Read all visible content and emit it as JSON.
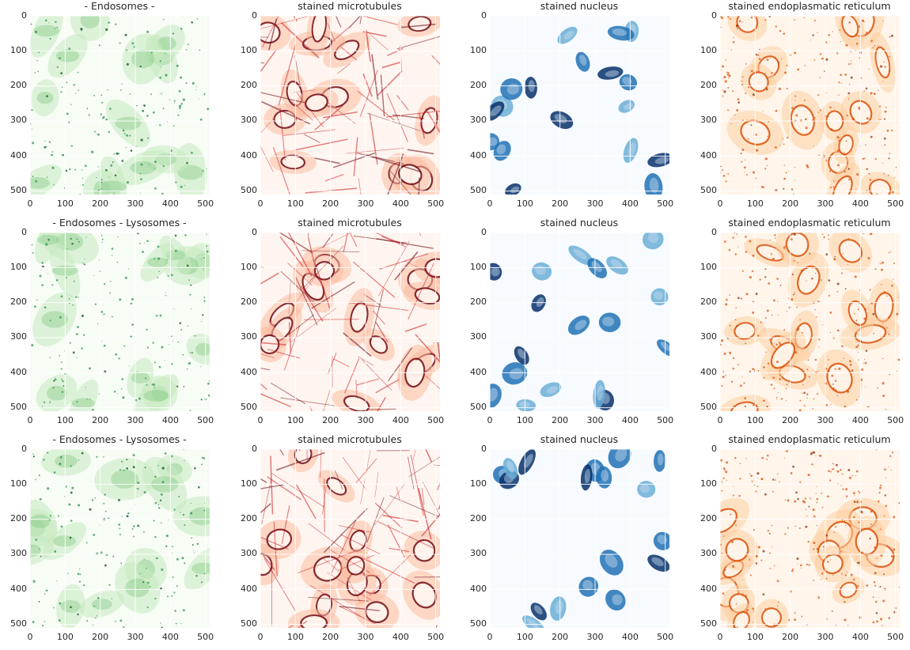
{
  "figure": {
    "axis_ticks": {
      "x": [
        "0",
        "100",
        "200",
        "300",
        "400",
        "500"
      ],
      "y": [
        "0",
        "100",
        "200",
        "300",
        "400",
        "500"
      ]
    },
    "colormaps": {
      "green": [
        "#f7fcf5",
        "#c7e9c0",
        "#74c476",
        "#238b45",
        "#00441b"
      ],
      "red": [
        "#fff5f0",
        "#fcbba1",
        "#fb6a4a",
        "#cb181d",
        "#67000d"
      ],
      "blue": [
        "#f7fbff",
        "#c6dbef",
        "#6baed6",
        "#2171b5",
        "#08306b"
      ],
      "orange": [
        "#fff5eb",
        "#fdd0a2",
        "#fd8d3c",
        "#d94801",
        "#7f2704"
      ]
    },
    "rows": [
      {
        "panels": [
          {
            "title": "- Endosomes -",
            "stain": "endosomes",
            "colormap": "green"
          },
          {
            "title": "stained microtubules",
            "stain": "microtubules",
            "colormap": "red"
          },
          {
            "title": "stained nucleus",
            "stain": "nucleus",
            "colormap": "blue"
          },
          {
            "title": "stained endoplasmatic reticulum",
            "stain": "endoplasmic-reticulum",
            "colormap": "orange"
          }
        ]
      },
      {
        "panels": [
          {
            "title": "- Endosomes - Lysosomes -",
            "stain": "endosomes-lysosomes",
            "colormap": "green"
          },
          {
            "title": "stained microtubules",
            "stain": "microtubules",
            "colormap": "red"
          },
          {
            "title": "stained nucleus",
            "stain": "nucleus",
            "colormap": "blue"
          },
          {
            "title": "stained endoplasmatic reticulum",
            "stain": "endoplasmic-reticulum",
            "colormap": "orange"
          }
        ]
      },
      {
        "panels": [
          {
            "title": "- Endosomes - Lysosomes -",
            "stain": "endosomes-lysosomes",
            "colormap": "green"
          },
          {
            "title": "stained microtubules",
            "stain": "microtubules",
            "colormap": "red"
          },
          {
            "title": "stained nucleus",
            "stain": "nucleus",
            "colormap": "blue"
          },
          {
            "title": "stained endoplasmatic reticulum",
            "stain": "endoplasmic-reticulum",
            "colormap": "orange"
          }
        ]
      }
    ]
  }
}
